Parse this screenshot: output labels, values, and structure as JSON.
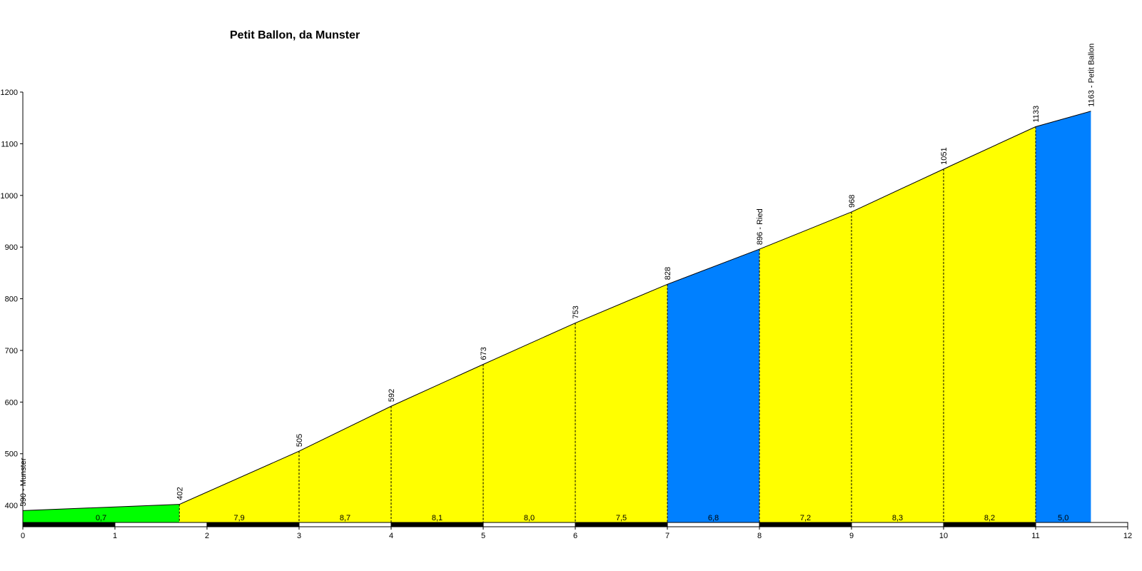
{
  "chart_data": {
    "type": "area",
    "title": "Petit Ballon, da Munster",
    "xlabel": "",
    "ylabel": "",
    "xlim": [
      0,
      12
    ],
    "ylim": [
      367,
      1200
    ],
    "x_ticks": [
      "0",
      "1",
      "2",
      "3",
      "4",
      "5",
      "6",
      "7",
      "8",
      "9",
      "10",
      "11",
      "12"
    ],
    "y_ticks": [
      "400",
      "500",
      "600",
      "700",
      "800",
      "900",
      "1000",
      "1100",
      "1200"
    ],
    "profile": [
      {
        "km": 0,
        "alt": 390,
        "label": "390 - Munster"
      },
      {
        "km": 1.7,
        "alt": 402,
        "label": "402"
      },
      {
        "km": 3,
        "alt": 505,
        "label": "505"
      },
      {
        "km": 4,
        "alt": 592,
        "label": "592"
      },
      {
        "km": 5,
        "alt": 673,
        "label": "673"
      },
      {
        "km": 6,
        "alt": 753,
        "label": "753"
      },
      {
        "km": 7,
        "alt": 828,
        "label": "828"
      },
      {
        "km": 8,
        "alt": 896,
        "label": "896 - Ried"
      },
      {
        "km": 9,
        "alt": 968,
        "label": "968"
      },
      {
        "km": 10,
        "alt": 1051,
        "label": "1051"
      },
      {
        "km": 11,
        "alt": 1133,
        "label": "1133"
      },
      {
        "km": 11.6,
        "alt": 1163,
        "label": "1163 - Petit Ballon"
      }
    ],
    "segments": [
      {
        "from": 0,
        "to": 1.7,
        "gradient": "0,7",
        "color": "#00ff00"
      },
      {
        "from": 1.7,
        "to": 3,
        "gradient": "7,9",
        "color": "#ffff00"
      },
      {
        "from": 3,
        "to": 4,
        "gradient": "8,7",
        "color": "#ffff00"
      },
      {
        "from": 4,
        "to": 5,
        "gradient": "8,1",
        "color": "#ffff00"
      },
      {
        "from": 5,
        "to": 6,
        "gradient": "8,0",
        "color": "#ffff00"
      },
      {
        "from": 6,
        "to": 7,
        "gradient": "7,5",
        "color": "#ffff00"
      },
      {
        "from": 7,
        "to": 8,
        "gradient": "6,8",
        "color": "#0080ff"
      },
      {
        "from": 8,
        "to": 9,
        "gradient": "7,2",
        "color": "#ffff00"
      },
      {
        "from": 9,
        "to": 10,
        "gradient": "8,3",
        "color": "#ffff00"
      },
      {
        "from": 10,
        "to": 11,
        "gradient": "8,2",
        "color": "#ffff00"
      },
      {
        "from": 11,
        "to": 11.6,
        "gradient": "5,0",
        "color": "#0080ff"
      }
    ],
    "grid": false,
    "legend": "none"
  }
}
